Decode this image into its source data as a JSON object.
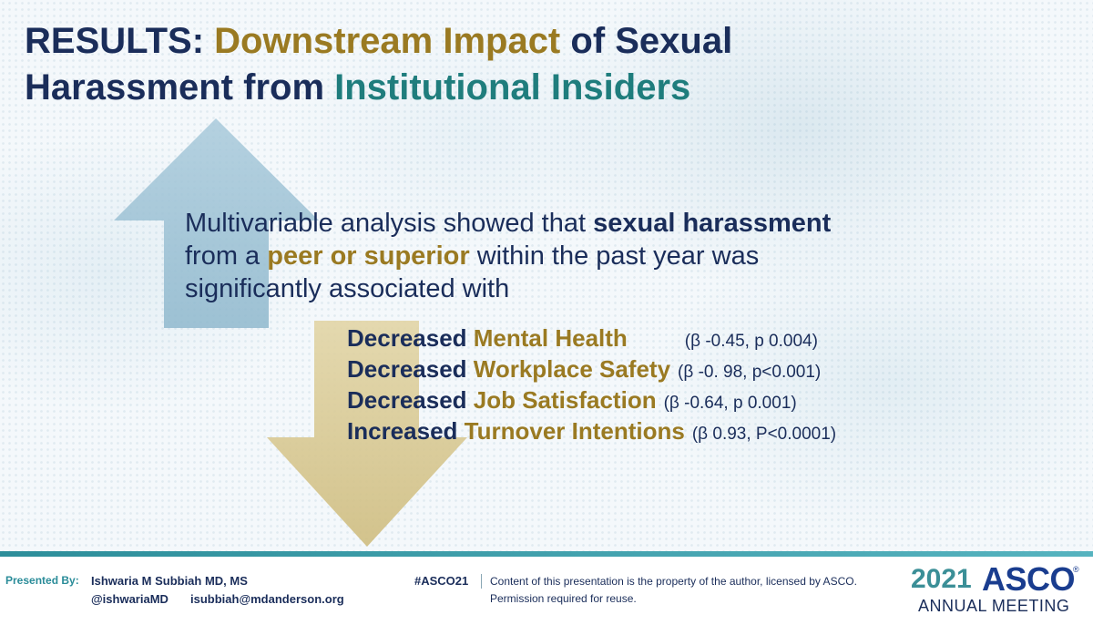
{
  "title": {
    "part1": "RESULTS: ",
    "part2": "Downstream Impact",
    "part3": " of Sexual",
    "part4": "Harassment from ",
    "part5": "Institutional Insiders"
  },
  "body": {
    "t1": "Multivariable analysis showed that ",
    "t2": "sexual harassment",
    "t3": "from a ",
    "t4": "peer or superior",
    "t5": " within the past year was",
    "t6": "significantly associated with"
  },
  "findings": [
    {
      "direction": "Decreased ",
      "outcome": "Mental Health",
      "stat": "(β -0.45, p 0.004)"
    },
    {
      "direction": "Decreased ",
      "outcome": "Workplace Safety",
      "stat": "(β -0. 98, p<0.001)"
    },
    {
      "direction": "Decreased ",
      "outcome": "Job Satisfaction",
      "stat": "(β -0.64, p 0.001)"
    },
    {
      "direction": "Increased ",
      "outcome": "Turnover Intentions",
      "stat": "(β 0.93, P<0.0001)"
    }
  ],
  "footer": {
    "presented_by": "Presented By:",
    "presenter_name": "Ishwaria M Subbiah MD, MS",
    "presenter_handle": "@ishwariaMD",
    "presenter_email": "isubbiah@mdanderson.org",
    "hashtag": "#ASCO21",
    "disclaimer_line1": "Content of this presentation is the property of the author, licensed by ASCO.",
    "disclaimer_line2": "Permission required for reuse."
  },
  "logo": {
    "year": "2021",
    "name": "ASCO",
    "reg": "®",
    "meeting": "ANNUAL MEETING"
  },
  "colors": {
    "navy": "#1a2d5a",
    "gold": "#9a7a22",
    "teal": "#1f7d7d",
    "up_arrow": "#9ec3d6",
    "down_arrow": "#dccd9a"
  }
}
